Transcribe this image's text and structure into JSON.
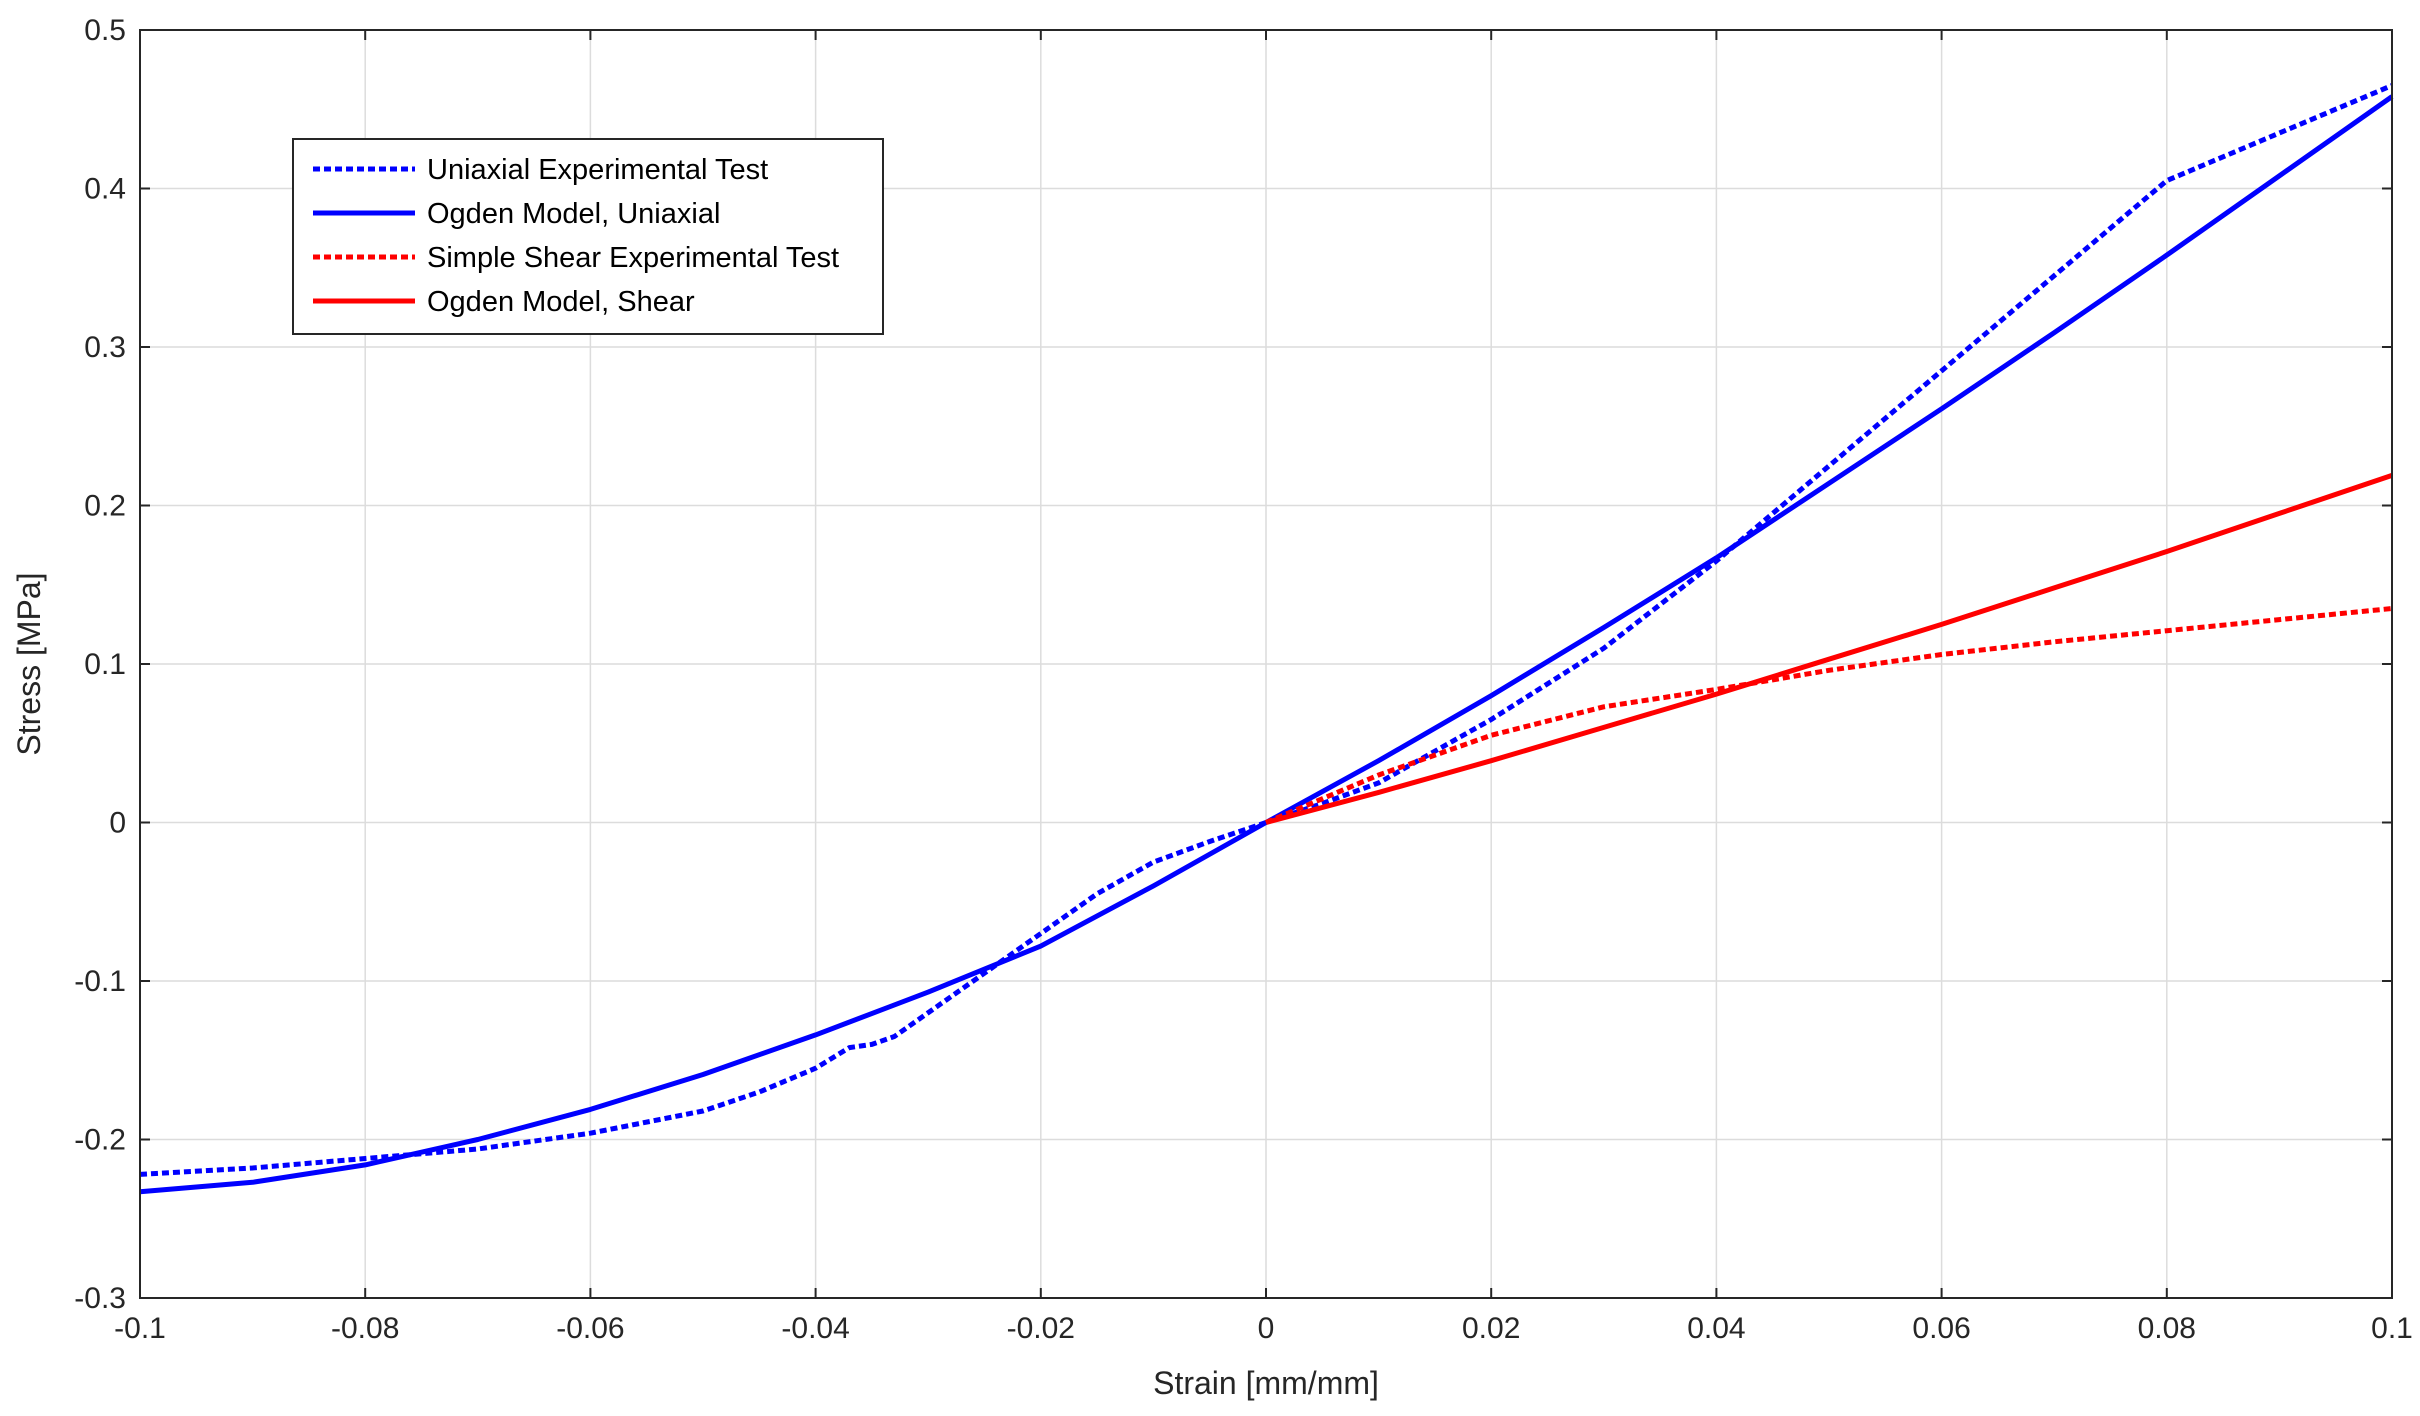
{
  "chart_data": {
    "type": "line",
    "xlabel": "Strain [mm/mm]",
    "ylabel": "Stress [MPa]",
    "xlim": [
      -0.1,
      0.1
    ],
    "ylim": [
      -0.3,
      0.5
    ],
    "xticks": [
      -0.1,
      -0.08,
      -0.06,
      -0.04,
      -0.02,
      0,
      0.02,
      0.04,
      0.06,
      0.08,
      0.1
    ],
    "xtick_labels": [
      "-0.1",
      "-0.08",
      "-0.06",
      "-0.04",
      "-0.02",
      "0",
      "0.02",
      "0.04",
      "0.06",
      "0.08",
      "0.1"
    ],
    "yticks": [
      -0.3,
      -0.2,
      -0.1,
      0,
      0.1,
      0.2,
      0.3,
      0.4,
      0.5
    ],
    "ytick_labels": [
      "-0.3",
      "-0.2",
      "-0.1",
      "0",
      "0.1",
      "0.2",
      "0.3",
      "0.4",
      "0.5"
    ],
    "grid": true,
    "legend_position": "top-left",
    "series": [
      {
        "name": "Uniaxial Experimental Test",
        "color": "#0000ff",
        "line_style": "dotted",
        "x": [
          -0.1,
          -0.09,
          -0.08,
          -0.07,
          -0.06,
          -0.05,
          -0.045,
          -0.04,
          -0.037,
          -0.035,
          -0.033,
          -0.03,
          -0.025,
          -0.02,
          -0.015,
          -0.01,
          -0.005,
          0,
          0.005,
          0.01,
          0.02,
          0.03,
          0.04,
          0.05,
          0.06,
          0.07,
          0.08,
          0.09,
          0.1
        ],
        "y": [
          -0.222,
          -0.218,
          -0.212,
          -0.206,
          -0.196,
          -0.182,
          -0.17,
          -0.155,
          -0.142,
          -0.14,
          -0.135,
          -0.12,
          -0.095,
          -0.07,
          -0.045,
          -0.025,
          -0.012,
          0,
          0.012,
          0.025,
          0.065,
          0.11,
          0.165,
          0.225,
          0.285,
          0.345,
          0.405,
          0.435,
          0.465
        ]
      },
      {
        "name": "Ogden Model, Uniaxial",
        "color": "#0000ff",
        "line_style": "solid",
        "x": [
          -0.1,
          -0.09,
          -0.08,
          -0.07,
          -0.06,
          -0.05,
          -0.04,
          -0.03,
          -0.02,
          -0.01,
          0,
          0.01,
          0.02,
          0.03,
          0.04,
          0.05,
          0.06,
          0.07,
          0.08,
          0.09,
          0.1
        ],
        "y": [
          -0.233,
          -0.227,
          -0.216,
          -0.2,
          -0.181,
          -0.159,
          -0.134,
          -0.107,
          -0.078,
          -0.04,
          0,
          0.039,
          0.08,
          0.123,
          0.167,
          0.214,
          0.261,
          0.309,
          0.358,
          0.408,
          0.458
        ]
      },
      {
        "name": "Simple Shear Experimental Test",
        "color": "#ff0000",
        "line_style": "dotted",
        "x": [
          0,
          0.01,
          0.02,
          0.03,
          0.04,
          0.05,
          0.06,
          0.07,
          0.08,
          0.09,
          0.1
        ],
        "y": [
          0,
          0.03,
          0.055,
          0.073,
          0.084,
          0.096,
          0.106,
          0.114,
          0.121,
          0.128,
          0.135
        ]
      },
      {
        "name": "Ogden Model, Shear",
        "color": "#ff0000",
        "line_style": "solid",
        "x": [
          0,
          0.01,
          0.02,
          0.03,
          0.04,
          0.05,
          0.06,
          0.07,
          0.08,
          0.09,
          0.1
        ],
        "y": [
          0,
          0.019,
          0.039,
          0.06,
          0.081,
          0.103,
          0.125,
          0.148,
          0.171,
          0.195,
          0.219
        ]
      }
    ]
  }
}
